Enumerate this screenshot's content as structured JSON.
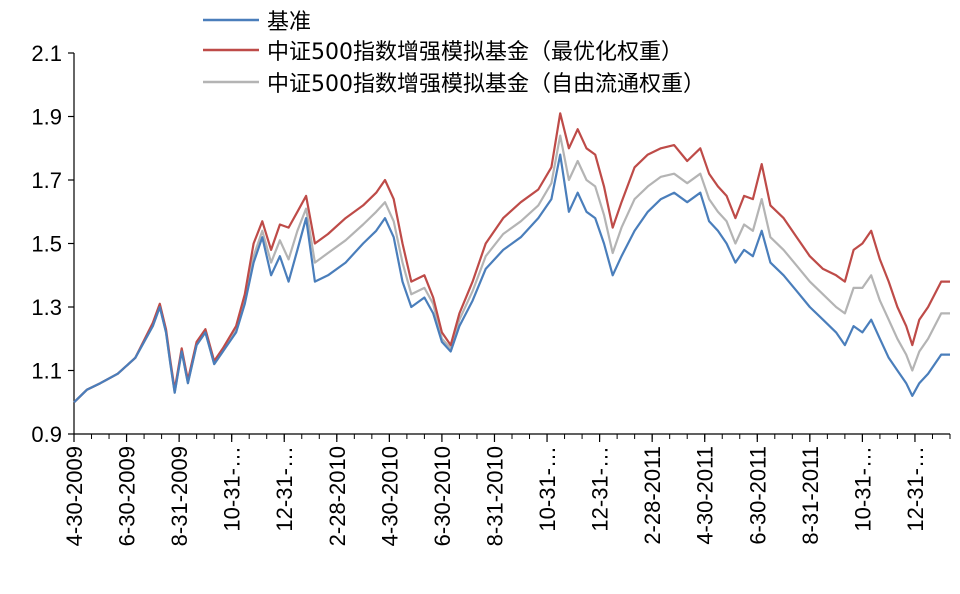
{
  "chart_data": {
    "type": "line",
    "yticks": [
      "0.9",
      "1.1",
      "1.3",
      "1.5",
      "1.7",
      "1.9",
      "2.1"
    ],
    "ylim": [
      0.9,
      2.1
    ],
    "xlim": [
      0,
      100
    ],
    "xticks": [
      {
        "x": 0,
        "label": "4-30-2009"
      },
      {
        "x": 6,
        "label": "6-30-2009"
      },
      {
        "x": 12,
        "label": "8-31-2009"
      },
      {
        "x": 18,
        "label": "10-31-…"
      },
      {
        "x": 24,
        "label": "12-31-…"
      },
      {
        "x": 30,
        "label": "2-28-2010"
      },
      {
        "x": 36,
        "label": "4-30-2010"
      },
      {
        "x": 42,
        "label": "6-30-2010"
      },
      {
        "x": 48,
        "label": "8-31-2010"
      },
      {
        "x": 54,
        "label": "10-31-…"
      },
      {
        "x": 60,
        "label": "12-31-…"
      },
      {
        "x": 66,
        "label": "2-28-2011"
      },
      {
        "x": 72,
        "label": "4-30-2011"
      },
      {
        "x": 78,
        "label": "6-30-2011"
      },
      {
        "x": 84,
        "label": "8-31-2011"
      },
      {
        "x": 90,
        "label": "10-31-…"
      },
      {
        "x": 96,
        "label": "12-31-…"
      }
    ],
    "series": [
      {
        "name": "基准",
        "color": "#4a7ebb",
        "points": [
          [
            0,
            1.0
          ],
          [
            1.5,
            1.04
          ],
          [
            3,
            1.06
          ],
          [
            5,
            1.09
          ],
          [
            7,
            1.14
          ],
          [
            9,
            1.24
          ],
          [
            9.8,
            1.3
          ],
          [
            10.5,
            1.22
          ],
          [
            11,
            1.12
          ],
          [
            11.5,
            1.03
          ],
          [
            12.3,
            1.16
          ],
          [
            13,
            1.06
          ],
          [
            14,
            1.18
          ],
          [
            15,
            1.22
          ],
          [
            16,
            1.12
          ],
          [
            17,
            1.16
          ],
          [
            18.5,
            1.22
          ],
          [
            19.5,
            1.31
          ],
          [
            20.5,
            1.44
          ],
          [
            21.5,
            1.52
          ],
          [
            22.5,
            1.4
          ],
          [
            23.5,
            1.46
          ],
          [
            24.5,
            1.38
          ],
          [
            25.5,
            1.48
          ],
          [
            26.5,
            1.58
          ],
          [
            27.5,
            1.38
          ],
          [
            29,
            1.4
          ],
          [
            31,
            1.44
          ],
          [
            33,
            1.5
          ],
          [
            34.5,
            1.54
          ],
          [
            35.5,
            1.58
          ],
          [
            36.5,
            1.52
          ],
          [
            37.5,
            1.38
          ],
          [
            38.5,
            1.3
          ],
          [
            40,
            1.33
          ],
          [
            41,
            1.28
          ],
          [
            42,
            1.19
          ],
          [
            43,
            1.16
          ],
          [
            44,
            1.24
          ],
          [
            45.5,
            1.32
          ],
          [
            47,
            1.42
          ],
          [
            49,
            1.48
          ],
          [
            51,
            1.52
          ],
          [
            53,
            1.58
          ],
          [
            54.5,
            1.64
          ],
          [
            55.5,
            1.78
          ],
          [
            56.5,
            1.6
          ],
          [
            57.5,
            1.66
          ],
          [
            58.5,
            1.6
          ],
          [
            59.5,
            1.58
          ],
          [
            60.5,
            1.5
          ],
          [
            61.5,
            1.4
          ],
          [
            62.5,
            1.46
          ],
          [
            64,
            1.54
          ],
          [
            65.5,
            1.6
          ],
          [
            67,
            1.64
          ],
          [
            68.5,
            1.66
          ],
          [
            70,
            1.63
          ],
          [
            71.5,
            1.66
          ],
          [
            72.5,
            1.57
          ],
          [
            73.5,
            1.54
          ],
          [
            74.5,
            1.5
          ],
          [
            75.5,
            1.44
          ],
          [
            76.5,
            1.48
          ],
          [
            77.5,
            1.46
          ],
          [
            78.5,
            1.54
          ],
          [
            79.5,
            1.44
          ],
          [
            81,
            1.4
          ],
          [
            82.5,
            1.35
          ],
          [
            84,
            1.3
          ],
          [
            85.5,
            1.26
          ],
          [
            87,
            1.22
          ],
          [
            88,
            1.18
          ],
          [
            89,
            1.24
          ],
          [
            90,
            1.22
          ],
          [
            91,
            1.26
          ],
          [
            92,
            1.2
          ],
          [
            93,
            1.14
          ],
          [
            94,
            1.1
          ],
          [
            95,
            1.06
          ],
          [
            95.7,
            1.02
          ],
          [
            96.5,
            1.06
          ],
          [
            97.5,
            1.09
          ],
          [
            99,
            1.15
          ],
          [
            100,
            1.15
          ]
        ]
      },
      {
        "name": "中证500指数增强模拟基金（最优化权重）",
        "color": "#be4b48",
        "points": [
          [
            0,
            1.0
          ],
          [
            1.5,
            1.04
          ],
          [
            3,
            1.06
          ],
          [
            5,
            1.09
          ],
          [
            7,
            1.14
          ],
          [
            9,
            1.25
          ],
          [
            9.8,
            1.31
          ],
          [
            10.5,
            1.23
          ],
          [
            11,
            1.13
          ],
          [
            11.5,
            1.04
          ],
          [
            12.3,
            1.17
          ],
          [
            13,
            1.07
          ],
          [
            14,
            1.19
          ],
          [
            15,
            1.23
          ],
          [
            16,
            1.13
          ],
          [
            17,
            1.17
          ],
          [
            18.5,
            1.24
          ],
          [
            19.5,
            1.34
          ],
          [
            20.5,
            1.5
          ],
          [
            21.5,
            1.57
          ],
          [
            22.5,
            1.48
          ],
          [
            23.5,
            1.56
          ],
          [
            24.5,
            1.55
          ],
          [
            25.5,
            1.6
          ],
          [
            26.5,
            1.65
          ],
          [
            27.5,
            1.5
          ],
          [
            29,
            1.53
          ],
          [
            31,
            1.58
          ],
          [
            33,
            1.62
          ],
          [
            34.5,
            1.66
          ],
          [
            35.5,
            1.7
          ],
          [
            36.5,
            1.64
          ],
          [
            37.5,
            1.5
          ],
          [
            38.5,
            1.38
          ],
          [
            40,
            1.4
          ],
          [
            41,
            1.33
          ],
          [
            42,
            1.22
          ],
          [
            43,
            1.18
          ],
          [
            44,
            1.28
          ],
          [
            45.5,
            1.38
          ],
          [
            47,
            1.5
          ],
          [
            49,
            1.58
          ],
          [
            51,
            1.63
          ],
          [
            53,
            1.67
          ],
          [
            54.5,
            1.74
          ],
          [
            55.5,
            1.91
          ],
          [
            56.5,
            1.8
          ],
          [
            57.5,
            1.86
          ],
          [
            58.5,
            1.8
          ],
          [
            59.5,
            1.78
          ],
          [
            60.5,
            1.68
          ],
          [
            61.5,
            1.55
          ],
          [
            62.5,
            1.63
          ],
          [
            64,
            1.74
          ],
          [
            65.5,
            1.78
          ],
          [
            67,
            1.8
          ],
          [
            68.5,
            1.81
          ],
          [
            70,
            1.76
          ],
          [
            71.5,
            1.8
          ],
          [
            72.5,
            1.72
          ],
          [
            73.5,
            1.68
          ],
          [
            74.5,
            1.65
          ],
          [
            75.5,
            1.58
          ],
          [
            76.5,
            1.65
          ],
          [
            77.5,
            1.64
          ],
          [
            78.5,
            1.75
          ],
          [
            79.5,
            1.62
          ],
          [
            81,
            1.58
          ],
          [
            82.5,
            1.52
          ],
          [
            84,
            1.46
          ],
          [
            85.5,
            1.42
          ],
          [
            87,
            1.4
          ],
          [
            88,
            1.38
          ],
          [
            89,
            1.48
          ],
          [
            90,
            1.5
          ],
          [
            91,
            1.54
          ],
          [
            92,
            1.45
          ],
          [
            93,
            1.38
          ],
          [
            94,
            1.3
          ],
          [
            95,
            1.24
          ],
          [
            95.7,
            1.18
          ],
          [
            96.5,
            1.26
          ],
          [
            97.5,
            1.3
          ],
          [
            99,
            1.38
          ],
          [
            100,
            1.38
          ]
        ]
      },
      {
        "name": "中证500指数增强模拟基金（自由流通权重）",
        "color": "#b4b4b4",
        "points": [
          [
            0,
            1.0
          ],
          [
            1.5,
            1.04
          ],
          [
            3,
            1.06
          ],
          [
            5,
            1.09
          ],
          [
            7,
            1.14
          ],
          [
            9,
            1.24
          ],
          [
            9.8,
            1.3
          ],
          [
            10.5,
            1.22
          ],
          [
            11,
            1.12
          ],
          [
            11.5,
            1.03
          ],
          [
            12.3,
            1.16
          ],
          [
            13,
            1.06
          ],
          [
            14,
            1.18
          ],
          [
            15,
            1.22
          ],
          [
            16,
            1.12
          ],
          [
            17,
            1.16
          ],
          [
            18.5,
            1.23
          ],
          [
            19.5,
            1.33
          ],
          [
            20.5,
            1.46
          ],
          [
            21.5,
            1.54
          ],
          [
            22.5,
            1.44
          ],
          [
            23.5,
            1.51
          ],
          [
            24.5,
            1.45
          ],
          [
            25.5,
            1.54
          ],
          [
            26.5,
            1.61
          ],
          [
            27.5,
            1.44
          ],
          [
            29,
            1.47
          ],
          [
            31,
            1.51
          ],
          [
            33,
            1.56
          ],
          [
            34.5,
            1.6
          ],
          [
            35.5,
            1.63
          ],
          [
            36.5,
            1.57
          ],
          [
            37.5,
            1.44
          ],
          [
            38.5,
            1.34
          ],
          [
            40,
            1.36
          ],
          [
            41,
            1.31
          ],
          [
            42,
            1.2
          ],
          [
            43,
            1.17
          ],
          [
            44,
            1.26
          ],
          [
            45.5,
            1.35
          ],
          [
            47,
            1.46
          ],
          [
            49,
            1.53
          ],
          [
            51,
            1.57
          ],
          [
            53,
            1.62
          ],
          [
            54.5,
            1.69
          ],
          [
            55.5,
            1.84
          ],
          [
            56.5,
            1.7
          ],
          [
            57.5,
            1.76
          ],
          [
            58.5,
            1.7
          ],
          [
            59.5,
            1.68
          ],
          [
            60.5,
            1.59
          ],
          [
            61.5,
            1.47
          ],
          [
            62.5,
            1.55
          ],
          [
            64,
            1.64
          ],
          [
            65.5,
            1.68
          ],
          [
            67,
            1.71
          ],
          [
            68.5,
            1.72
          ],
          [
            70,
            1.69
          ],
          [
            71.5,
            1.72
          ],
          [
            72.5,
            1.64
          ],
          [
            73.5,
            1.6
          ],
          [
            74.5,
            1.57
          ],
          [
            75.5,
            1.5
          ],
          [
            76.5,
            1.56
          ],
          [
            77.5,
            1.54
          ],
          [
            78.5,
            1.64
          ],
          [
            79.5,
            1.52
          ],
          [
            81,
            1.48
          ],
          [
            82.5,
            1.43
          ],
          [
            84,
            1.38
          ],
          [
            85.5,
            1.34
          ],
          [
            87,
            1.3
          ],
          [
            88,
            1.28
          ],
          [
            89,
            1.36
          ],
          [
            90,
            1.36
          ],
          [
            91,
            1.4
          ],
          [
            92,
            1.32
          ],
          [
            93,
            1.26
          ],
          [
            94,
            1.2
          ],
          [
            95,
            1.15
          ],
          [
            95.7,
            1.1
          ],
          [
            96.5,
            1.16
          ],
          [
            97.5,
            1.2
          ],
          [
            99,
            1.28
          ],
          [
            100,
            1.28
          ]
        ]
      }
    ],
    "legend_position": "top"
  }
}
